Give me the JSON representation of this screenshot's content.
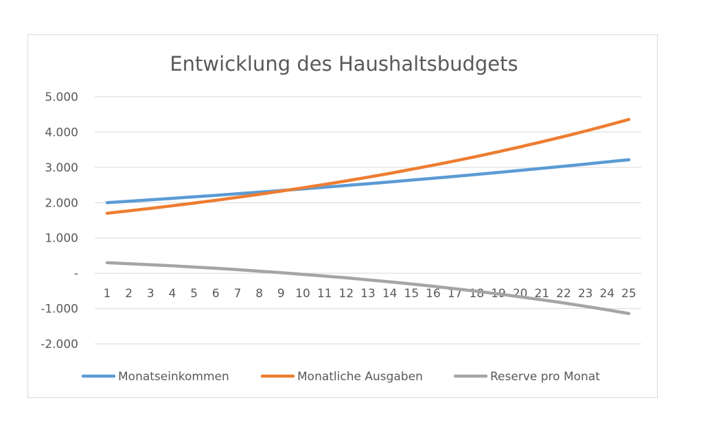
{
  "chart_data": {
    "type": "line",
    "title": "Entwicklung des Haushaltsbudgets",
    "xlabel": "",
    "ylabel": "",
    "ylim": [
      -2000,
      5000
    ],
    "y_ticks": [
      {
        "value": 5000,
        "label": "5.000"
      },
      {
        "value": 4000,
        "label": "4.000"
      },
      {
        "value": 3000,
        "label": "3.000"
      },
      {
        "value": 2000,
        "label": "2.000"
      },
      {
        "value": 1000,
        "label": "1.000"
      },
      {
        "value": 0,
        "label": "-"
      },
      {
        "value": -1000,
        "label": "-1.000"
      },
      {
        "value": -2000,
        "label": "-2.000"
      }
    ],
    "categories": [
      "1",
      "2",
      "3",
      "4",
      "5",
      "6",
      "7",
      "8",
      "9",
      "10",
      "11",
      "12",
      "13",
      "14",
      "15",
      "16",
      "17",
      "18",
      "19",
      "20",
      "21",
      "22",
      "23",
      "24",
      "25"
    ],
    "grid": true,
    "legend_position": "bottom",
    "series": [
      {
        "name": "Monatseinkommen",
        "color": "#5B9BD5",
        "values": [
          2000,
          2040,
          2081,
          2122,
          2165,
          2208,
          2252,
          2297,
          2343,
          2390,
          2438,
          2487,
          2536,
          2587,
          2639,
          2692,
          2745,
          2800,
          2856,
          2913,
          2972,
          3031,
          3092,
          3154,
          3217
        ]
      },
      {
        "name": "Monatliche Ausgaben",
        "color": "#ED7D31",
        "values": [
          1700,
          1768,
          1839,
          1912,
          1989,
          2068,
          2151,
          2237,
          2327,
          2420,
          2516,
          2617,
          2722,
          2830,
          2944,
          3061,
          3184,
          3311,
          3443,
          3581,
          3724,
          3873,
          4028,
          4189,
          4357
        ]
      },
      {
        "name": "Reserve pro Monat",
        "color": "#A5A5A5",
        "values": [
          300,
          272,
          242,
          210,
          176,
          140,
          101,
          60,
          16,
          -30,
          -78,
          -130,
          -186,
          -243,
          -305,
          -369,
          -439,
          -511,
          -587,
          -668,
          -752,
          -842,
          -936,
          -1035,
          -1140
        ]
      }
    ]
  }
}
